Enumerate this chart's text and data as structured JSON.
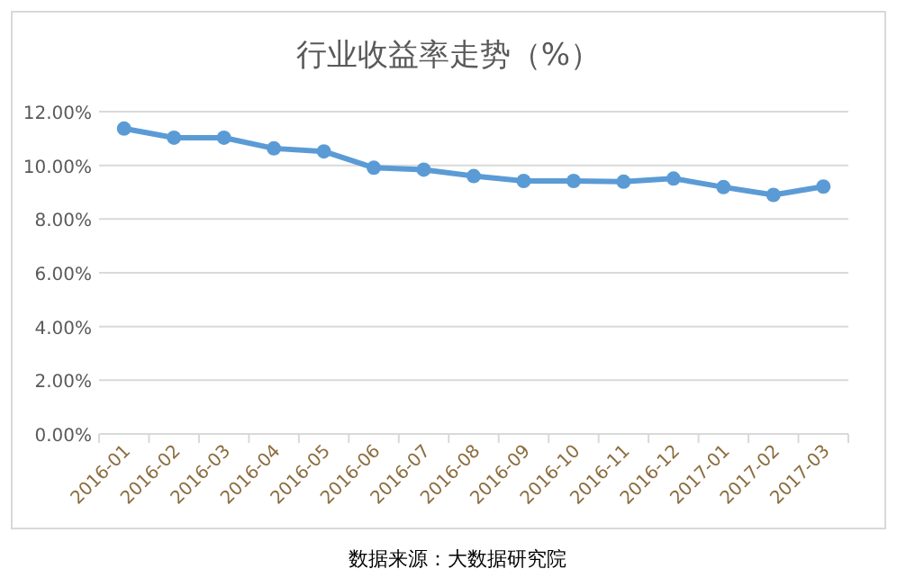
{
  "chart_data": {
    "type": "line",
    "title": "行业收益率走势（%）",
    "categories": [
      "2016-01",
      "2016-02",
      "2016-03",
      "2016-04",
      "2016-05",
      "2016-06",
      "2016-07",
      "2016-08",
      "2016-09",
      "2016-10",
      "2016-11",
      "2016-12",
      "2017-01",
      "2017-02",
      "2017-03"
    ],
    "series": [
      {
        "color": "#5b9bd5",
        "values": [
          11.37,
          11.03,
          11.03,
          10.63,
          10.52,
          9.91,
          9.84,
          9.6,
          9.42,
          9.42,
          9.39,
          9.51,
          9.19,
          8.9,
          9.21
        ]
      }
    ],
    "ylim": [
      0,
      12
    ],
    "yticks": [
      {
        "value": 0,
        "label": "0.00%"
      },
      {
        "value": 2,
        "label": "2.00%"
      },
      {
        "value": 4,
        "label": "4.00%"
      },
      {
        "value": 6,
        "label": "6.00%"
      },
      {
        "value": 8,
        "label": "8.00%"
      },
      {
        "value": 10,
        "label": "10.00%"
      },
      {
        "value": 12,
        "label": "12.00%"
      }
    ],
    "grid": "y",
    "marker": "circle",
    "line_style": "solid",
    "annotations": [
      "数据来源：大数据研究院"
    ]
  }
}
